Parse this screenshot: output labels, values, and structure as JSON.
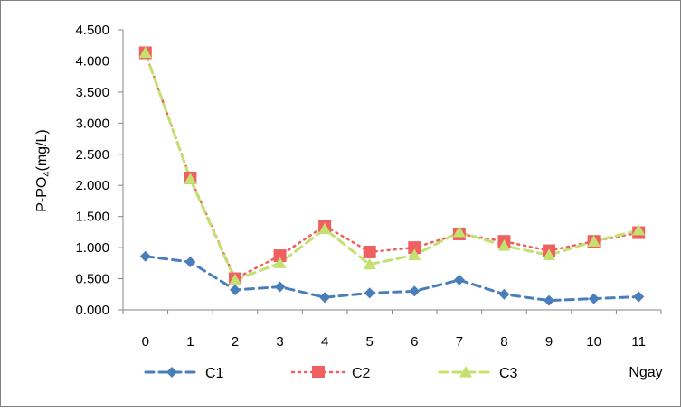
{
  "chart_data": {
    "type": "line",
    "ylabel_prefix": "P-PO",
    "ylabel_sub": "4",
    "ylabel_suffix": "(mg/L)",
    "xlabel": "Ngay",
    "ylim": [
      0,
      4.5
    ],
    "yticks": [
      "0.000",
      "0.500",
      "1.000",
      "1.500",
      "2.000",
      "2.500",
      "3.000",
      "3.500",
      "4.000",
      "4.500"
    ],
    "categories": [
      "0",
      "1",
      "2",
      "3",
      "4",
      "5",
      "6",
      "7",
      "8",
      "9",
      "10",
      "11"
    ],
    "grid": false,
    "legend_position": "bottom",
    "series": [
      {
        "name": "C1",
        "color": "#4a7ebb",
        "marker": "diamond",
        "line": "dash",
        "values": [
          0.86,
          0.77,
          0.32,
          0.37,
          0.2,
          0.27,
          0.3,
          0.48,
          0.25,
          0.15,
          0.18,
          0.21
        ]
      },
      {
        "name": "C2",
        "color": "#f06060",
        "marker": "square",
        "line": "dot",
        "values": [
          4.13,
          2.12,
          0.5,
          0.87,
          1.35,
          0.93,
          1.0,
          1.22,
          1.1,
          0.95,
          1.1,
          1.24
        ]
      },
      {
        "name": "C3",
        "color": "#c4e070",
        "marker": "triangle",
        "line": "dash",
        "values": [
          4.13,
          2.1,
          0.48,
          0.75,
          1.3,
          0.73,
          0.88,
          1.25,
          1.03,
          0.88,
          1.1,
          1.28
        ]
      }
    ]
  }
}
